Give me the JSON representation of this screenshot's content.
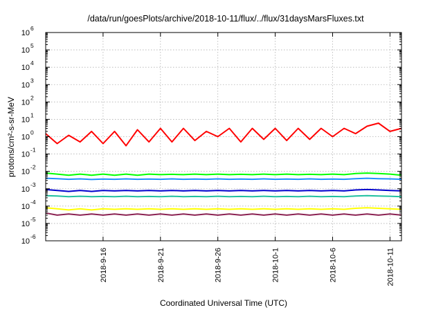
{
  "chart_data": {
    "type": "line",
    "title": "/data/run/goesPlots/archive/2018-10-11/flux/../flux/31daysMarsFluxes.txt",
    "xlabel": "Coordinated Universal Time (UTC)",
    "ylabel": "protons/cm²-s-sr-MeV",
    "yscale": "log",
    "ylim": [
      1e-06,
      1000000.0
    ],
    "xlim": [
      "2018-09-11",
      "2018-10-12"
    ],
    "grid": true,
    "x_ticks": [
      "2018-9-16",
      "2018-9-21",
      "2018-9-26",
      "2018-10-1",
      "2018-10-6",
      "2018-10-11"
    ],
    "y_ticks": [
      {
        "base": "10",
        "exp": "-6"
      },
      {
        "base": "10",
        "exp": "-5"
      },
      {
        "base": "10",
        "exp": "-4"
      },
      {
        "base": "10",
        "exp": "-3"
      },
      {
        "base": "10",
        "exp": "-2"
      },
      {
        "base": "10",
        "exp": "-1"
      },
      {
        "base": "10",
        "exp": "0"
      },
      {
        "base": "10",
        "exp": "1"
      },
      {
        "base": "10",
        "exp": "2"
      },
      {
        "base": "10",
        "exp": "3"
      },
      {
        "base": "10",
        "exp": "4"
      },
      {
        "base": "10",
        "exp": "5"
      },
      {
        "base": "10",
        "exp": "6"
      }
    ],
    "x": [
      "2018-09-11",
      "2018-09-12",
      "2018-09-13",
      "2018-09-14",
      "2018-09-15",
      "2018-09-16",
      "2018-09-17",
      "2018-09-18",
      "2018-09-19",
      "2018-09-20",
      "2018-09-21",
      "2018-09-22",
      "2018-09-23",
      "2018-09-24",
      "2018-09-25",
      "2018-09-26",
      "2018-09-27",
      "2018-09-28",
      "2018-09-29",
      "2018-09-30",
      "2018-10-01",
      "2018-10-02",
      "2018-10-03",
      "2018-10-04",
      "2018-10-05",
      "2018-10-06",
      "2018-10-07",
      "2018-10-08",
      "2018-10-09",
      "2018-10-10",
      "2018-10-11",
      "2018-10-12"
    ],
    "series": [
      {
        "color": "#ff0000",
        "values": [
          1.5,
          0.4,
          1.2,
          0.5,
          2.0,
          0.4,
          2.0,
          0.3,
          2.5,
          0.5,
          3.0,
          0.5,
          3.0,
          0.6,
          2.0,
          1.0,
          3.0,
          0.5,
          3.0,
          0.7,
          3.0,
          0.6,
          3.0,
          0.7,
          3.0,
          1.0,
          3.0,
          1.5,
          4.0,
          6.0,
          2.0,
          3.0
        ]
      },
      {
        "color": "#00ff00",
        "values": [
          0.008,
          0.007,
          0.006,
          0.007,
          0.006,
          0.007,
          0.006,
          0.007,
          0.006,
          0.007,
          0.0065,
          0.0068,
          0.0065,
          0.007,
          0.0065,
          0.007,
          0.0065,
          0.0068,
          0.0065,
          0.007,
          0.0065,
          0.007,
          0.0065,
          0.0068,
          0.0065,
          0.007,
          0.0065,
          0.0075,
          0.008,
          0.0075,
          0.007,
          0.006
        ]
      },
      {
        "color": "#1e90ff",
        "values": [
          0.004,
          0.0038,
          0.0035,
          0.0037,
          0.0034,
          0.0036,
          0.0035,
          0.0037,
          0.0035,
          0.0036,
          0.0035,
          0.0037,
          0.0035,
          0.0036,
          0.0035,
          0.0037,
          0.0035,
          0.0036,
          0.0035,
          0.0037,
          0.0035,
          0.0036,
          0.0035,
          0.0037,
          0.0035,
          0.0036,
          0.0035,
          0.0038,
          0.004,
          0.0038,
          0.0037,
          0.0035
        ]
      },
      {
        "color": "#0000cd",
        "values": [
          0.0009,
          0.0008,
          0.0007,
          0.0008,
          0.0007,
          0.0008,
          0.00075,
          0.0008,
          0.00075,
          0.0008,
          0.00075,
          0.0008,
          0.00075,
          0.0008,
          0.00075,
          0.0008,
          0.00075,
          0.0008,
          0.00075,
          0.0008,
          0.00075,
          0.0008,
          0.00075,
          0.0008,
          0.00075,
          0.0008,
          0.00075,
          0.00085,
          0.0009,
          0.00085,
          0.0008,
          0.00075
        ]
      },
      {
        "color": "#20c0a0",
        "values": [
          0.0004,
          0.00038,
          0.00035,
          0.00037,
          0.00035,
          0.00036,
          0.00035,
          0.00037,
          0.00035,
          0.00036,
          0.00035,
          0.00037,
          0.00035,
          0.00036,
          0.00035,
          0.00037,
          0.00035,
          0.00036,
          0.00035,
          0.00037,
          0.00035,
          0.00036,
          0.00035,
          0.00037,
          0.00035,
          0.00036,
          0.00035,
          0.00038,
          0.0004,
          0.00038,
          0.00037,
          0.00035
        ]
      },
      {
        "color": "#ffff00",
        "values": [
          8e-05,
          7e-05,
          6e-05,
          7e-05,
          6e-05,
          7e-05,
          6.5e-05,
          7e-05,
          6.5e-05,
          7e-05,
          6.5e-05,
          7e-05,
          6.5e-05,
          7e-05,
          6.5e-05,
          7e-05,
          6.5e-05,
          7e-05,
          6.5e-05,
          7e-05,
          6.5e-05,
          7e-05,
          6.5e-05,
          7e-05,
          6.5e-05,
          7e-05,
          6.5e-05,
          7.5e-05,
          8e-05,
          7.5e-05,
          7e-05,
          6.5e-05
        ]
      },
      {
        "color": "#8b2252",
        "values": [
          4e-05,
          3e-05,
          3.5e-05,
          3e-05,
          3.5e-05,
          3e-05,
          3.5e-05,
          3e-05,
          3.5e-05,
          3e-05,
          3.5e-05,
          3e-05,
          3.5e-05,
          3e-05,
          3.5e-05,
          3e-05,
          3.5e-05,
          3e-05,
          3.5e-05,
          3e-05,
          3.5e-05,
          3e-05,
          3.5e-05,
          3e-05,
          3.5e-05,
          3e-05,
          3.5e-05,
          3e-05,
          3.5e-05,
          3e-05,
          3.5e-05,
          3e-05
        ]
      }
    ]
  }
}
